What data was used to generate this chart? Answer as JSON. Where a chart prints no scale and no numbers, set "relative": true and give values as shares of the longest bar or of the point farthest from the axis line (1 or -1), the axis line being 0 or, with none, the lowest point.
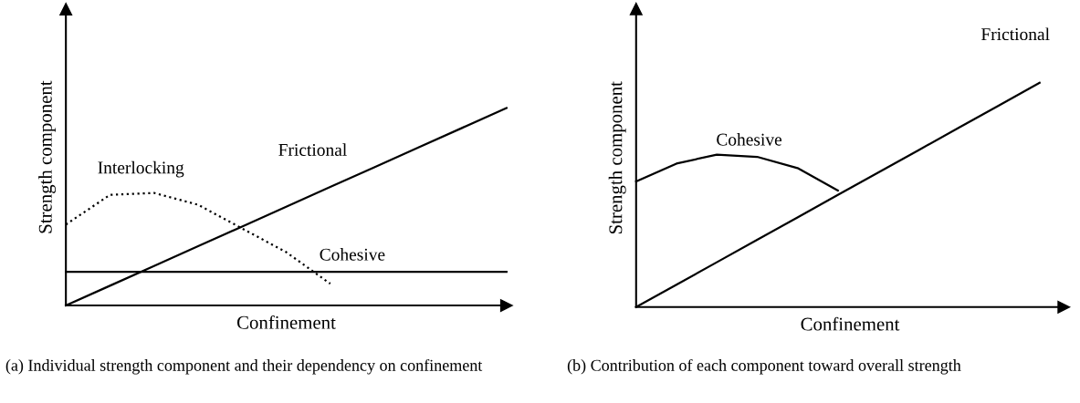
{
  "chart_data": [
    {
      "type": "line",
      "relative": true,
      "xlabel": "Confinement",
      "ylabel": "Strength component",
      "categories": [
        null,
        null,
        null,
        null,
        null,
        null,
        null,
        null,
        null,
        null,
        null
      ],
      "legend": false,
      "grid": false,
      "marker": "none",
      "series": [
        {
          "name": "Frictional",
          "color": "#000000",
          "line_style": "solid",
          "values": [
            0,
            0.1,
            0.2,
            0.3,
            0.4,
            0.5,
            0.6,
            0.7,
            0.8,
            0.9,
            1
          ]
        },
        {
          "name": "Interlocking",
          "color": "#000000",
          "line_style": "dotted",
          "values": [
            0.41,
            0.56,
            0.57,
            0.51,
            0.39,
            0.27,
            0.11,
            null,
            null,
            null,
            null
          ]
        },
        {
          "name": "Cohesive",
          "color": "#000000",
          "line_style": "solid",
          "values": [
            0.17,
            0.17,
            0.17,
            0.17,
            0.17,
            0.17,
            0.17,
            0.17,
            0.17,
            0.17,
            0.17
          ]
        }
      ],
      "annotations": [
        "(a) Individual strength component and their dependency on confinement"
      ]
    },
    {
      "type": "line",
      "relative": true,
      "xlabel": "Confinement",
      "ylabel": "Strength component",
      "categories": [
        null,
        null,
        null,
        null,
        null,
        null,
        null,
        null,
        null,
        null,
        null
      ],
      "legend": false,
      "grid": false,
      "marker": "none",
      "series": [
        {
          "name": "Frictional",
          "color": "#000000",
          "line_style": "solid",
          "values": [
            0,
            0.1,
            0.2,
            0.3,
            0.4,
            0.5,
            0.6,
            0.7,
            0.8,
            0.9,
            1
          ]
        },
        {
          "name": "Cohesive",
          "color": "#000000",
          "line_style": "solid",
          "values": [
            0.56,
            0.64,
            0.68,
            0.67,
            0.62,
            0.52,
            null,
            null,
            null,
            null,
            null
          ]
        }
      ],
      "annotations": [
        "(b) Contribution of each component toward overall strength"
      ]
    }
  ]
}
